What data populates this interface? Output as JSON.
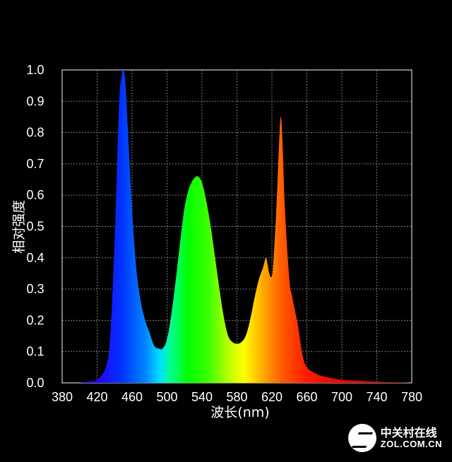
{
  "chart_data": {
    "type": "area",
    "xlabel": "波长(nm)",
    "ylabel": "相对强度",
    "xlim": [
      380,
      780
    ],
    "ylim": [
      0,
      1.0
    ],
    "xticks": [
      380,
      420,
      460,
      500,
      540,
      580,
      620,
      660,
      700,
      740,
      780
    ],
    "yticks": [
      0.0,
      0.1,
      0.2,
      0.3,
      0.4,
      0.5,
      0.6,
      0.7,
      0.8,
      0.9,
      1.0
    ],
    "ytick_labels": [
      "0.0",
      "0.1",
      "0.2",
      "0.3",
      "0.4",
      "0.5",
      "0.6",
      "0.7",
      "0.8",
      "0.9",
      "1.0"
    ],
    "grid": true,
    "x": [
      380,
      400,
      410,
      420,
      430,
      435,
      440,
      445,
      448,
      450,
      452,
      455,
      460,
      465,
      470,
      475,
      480,
      485,
      490,
      495,
      500,
      505,
      510,
      515,
      520,
      525,
      530,
      535,
      540,
      545,
      550,
      555,
      560,
      565,
      570,
      575,
      580,
      585,
      590,
      595,
      600,
      605,
      610,
      613,
      615,
      617,
      620,
      622,
      625,
      628,
      630,
      632,
      635,
      640,
      643,
      645,
      650,
      655,
      660,
      670,
      680,
      700,
      720,
      740,
      760,
      780
    ],
    "y": [
      0,
      0,
      0.005,
      0.01,
      0.05,
      0.15,
      0.45,
      0.88,
      0.98,
      1.0,
      0.97,
      0.82,
      0.55,
      0.36,
      0.26,
      0.2,
      0.16,
      0.12,
      0.11,
      0.11,
      0.14,
      0.22,
      0.33,
      0.45,
      0.56,
      0.62,
      0.65,
      0.66,
      0.64,
      0.58,
      0.5,
      0.4,
      0.3,
      0.21,
      0.15,
      0.13,
      0.125,
      0.13,
      0.15,
      0.2,
      0.27,
      0.33,
      0.37,
      0.4,
      0.38,
      0.35,
      0.34,
      0.4,
      0.55,
      0.75,
      0.85,
      0.78,
      0.55,
      0.33,
      0.28,
      0.25,
      0.18,
      0.09,
      0.05,
      0.03,
      0.02,
      0.01,
      0.007,
      0.004,
      0.002,
      0
    ]
  },
  "watermark": {
    "cn": "中关村在线",
    "en": "ZOL.COM.CN"
  }
}
